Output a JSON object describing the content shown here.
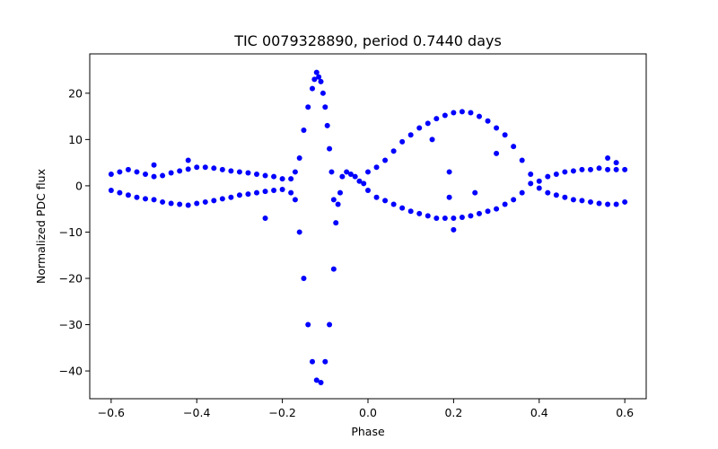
{
  "chart_data": {
    "type": "scatter",
    "title": "TIC 0079328890, period 0.7440 days",
    "xlabel": "Phase",
    "ylabel": "Normalized PDC flux",
    "xlim": [
      -0.65,
      0.65
    ],
    "ylim": [
      -46,
      28.5
    ],
    "xticks": [
      -0.6,
      -0.4,
      -0.2,
      0.0,
      0.2,
      0.4,
      0.6
    ],
    "xtick_labels": [
      "−0.6",
      "−0.4",
      "−0.2",
      "0.0",
      "0.2",
      "0.4",
      "0.6"
    ],
    "yticks": [
      -40,
      -30,
      -20,
      -10,
      0,
      10,
      20
    ],
    "ytick_labels": [
      "−40",
      "−30",
      "−20",
      "−10",
      "0",
      "10",
      "20"
    ],
    "grid": false,
    "legend": null,
    "marker_color": "#0000ff",
    "series": [
      {
        "name": "PDC flux",
        "points": [
          [
            -0.6,
            2.5
          ],
          [
            -0.6,
            -1.0
          ],
          [
            -0.58,
            3.0
          ],
          [
            -0.58,
            -1.5
          ],
          [
            -0.56,
            3.5
          ],
          [
            -0.56,
            -2.0
          ],
          [
            -0.54,
            3.0
          ],
          [
            -0.54,
            -2.5
          ],
          [
            -0.52,
            2.5
          ],
          [
            -0.52,
            -2.8
          ],
          [
            -0.5,
            2.0
          ],
          [
            -0.5,
            -3.0
          ],
          [
            -0.48,
            2.2
          ],
          [
            -0.48,
            -3.5
          ],
          [
            -0.46,
            2.8
          ],
          [
            -0.46,
            -3.8
          ],
          [
            -0.44,
            3.2
          ],
          [
            -0.44,
            -4.0
          ],
          [
            -0.42,
            3.6
          ],
          [
            -0.42,
            -4.2
          ],
          [
            -0.4,
            4.0
          ],
          [
            -0.4,
            -3.8
          ],
          [
            -0.38,
            4.0
          ],
          [
            -0.38,
            -3.5
          ],
          [
            -0.36,
            3.8
          ],
          [
            -0.36,
            -3.2
          ],
          [
            -0.34,
            3.5
          ],
          [
            -0.34,
            -2.8
          ],
          [
            -0.32,
            3.2
          ],
          [
            -0.32,
            -2.5
          ],
          [
            -0.3,
            3.0
          ],
          [
            -0.3,
            -2.0
          ],
          [
            -0.28,
            2.8
          ],
          [
            -0.28,
            -1.8
          ],
          [
            -0.26,
            2.5
          ],
          [
            -0.26,
            -1.5
          ],
          [
            -0.24,
            2.2
          ],
          [
            -0.24,
            -1.2
          ],
          [
            -0.22,
            2.0
          ],
          [
            -0.22,
            -1.0
          ],
          [
            -0.2,
            1.5
          ],
          [
            -0.2,
            -0.8
          ],
          [
            -0.18,
            1.5
          ],
          [
            -0.18,
            -1.5
          ],
          [
            -0.17,
            3.0
          ],
          [
            -0.17,
            -3.0
          ],
          [
            -0.16,
            6.0
          ],
          [
            -0.16,
            -10.0
          ],
          [
            -0.15,
            12.0
          ],
          [
            -0.15,
            -20.0
          ],
          [
            -0.14,
            17.0
          ],
          [
            -0.14,
            -30.0
          ],
          [
            -0.13,
            21.0
          ],
          [
            -0.13,
            -38.0
          ],
          [
            -0.125,
            23.0
          ],
          [
            -0.12,
            24.5
          ],
          [
            -0.12,
            -42.0
          ],
          [
            -0.115,
            23.5
          ],
          [
            -0.11,
            22.5
          ],
          [
            -0.11,
            -42.5
          ],
          [
            -0.105,
            20.0
          ],
          [
            -0.1,
            17.0
          ],
          [
            -0.1,
            -38.0
          ],
          [
            -0.095,
            13.0
          ],
          [
            -0.09,
            8.0
          ],
          [
            -0.09,
            -30.0
          ],
          [
            -0.085,
            3.0
          ],
          [
            -0.08,
            -3.0
          ],
          [
            -0.08,
            -18.0
          ],
          [
            -0.075,
            -8.0
          ],
          [
            -0.07,
            -4.0
          ],
          [
            -0.065,
            -1.5
          ],
          [
            -0.06,
            2.0
          ],
          [
            -0.05,
            3.0
          ],
          [
            -0.04,
            2.5
          ],
          [
            -0.03,
            2.0
          ],
          [
            -0.02,
            1.0
          ],
          [
            -0.01,
            0.5
          ],
          [
            0.0,
            3.0
          ],
          [
            0.0,
            -1.0
          ],
          [
            0.02,
            4.0
          ],
          [
            0.02,
            -2.5
          ],
          [
            0.04,
            5.5
          ],
          [
            0.04,
            -3.2
          ],
          [
            0.06,
            7.5
          ],
          [
            0.06,
            -4.0
          ],
          [
            0.08,
            9.5
          ],
          [
            0.08,
            -4.8
          ],
          [
            0.1,
            11.0
          ],
          [
            0.1,
            -5.5
          ],
          [
            0.12,
            12.5
          ],
          [
            0.12,
            -6.0
          ],
          [
            0.14,
            13.5
          ],
          [
            0.14,
            -6.5
          ],
          [
            0.16,
            14.5
          ],
          [
            0.16,
            -7.0
          ],
          [
            0.18,
            15.2
          ],
          [
            0.18,
            -7.0
          ],
          [
            0.2,
            15.8
          ],
          [
            0.2,
            -7.0
          ],
          [
            0.22,
            16.0
          ],
          [
            0.22,
            -6.8
          ],
          [
            0.24,
            15.8
          ],
          [
            0.24,
            -6.5
          ],
          [
            0.26,
            15.0
          ],
          [
            0.26,
            -6.0
          ],
          [
            0.28,
            14.0
          ],
          [
            0.28,
            -5.5
          ],
          [
            0.3,
            12.5
          ],
          [
            0.3,
            -5.0
          ],
          [
            0.32,
            11.0
          ],
          [
            0.32,
            -4.0
          ],
          [
            0.34,
            8.5
          ],
          [
            0.34,
            -3.0
          ],
          [
            0.36,
            5.5
          ],
          [
            0.36,
            -1.5
          ],
          [
            0.38,
            2.5
          ],
          [
            0.38,
            0.5
          ],
          [
            0.4,
            1.0
          ],
          [
            0.4,
            -0.5
          ],
          [
            0.42,
            2.0
          ],
          [
            0.42,
            -1.5
          ],
          [
            0.44,
            2.5
          ],
          [
            0.44,
            -2.0
          ],
          [
            0.46,
            3.0
          ],
          [
            0.46,
            -2.5
          ],
          [
            0.48,
            3.2
          ],
          [
            0.48,
            -3.0
          ],
          [
            0.5,
            3.5
          ],
          [
            0.5,
            -3.2
          ],
          [
            0.52,
            3.5
          ],
          [
            0.52,
            -3.5
          ],
          [
            0.54,
            3.8
          ],
          [
            0.54,
            -3.8
          ],
          [
            0.56,
            3.5
          ],
          [
            0.56,
            -4.0
          ],
          [
            0.58,
            3.5
          ],
          [
            0.58,
            -4.0
          ],
          [
            0.6,
            3.5
          ],
          [
            0.6,
            -3.5
          ],
          [
            0.15,
            10.0
          ],
          [
            0.19,
            -2.5
          ],
          [
            0.19,
            3.0
          ],
          [
            0.2,
            -9.5
          ],
          [
            0.25,
            -1.5
          ],
          [
            0.3,
            7.0
          ],
          [
            -0.24,
            -7.0
          ],
          [
            -0.42,
            5.5
          ],
          [
            -0.5,
            4.5
          ],
          [
            0.56,
            6.0
          ],
          [
            0.58,
            5.0
          ]
        ]
      }
    ]
  }
}
